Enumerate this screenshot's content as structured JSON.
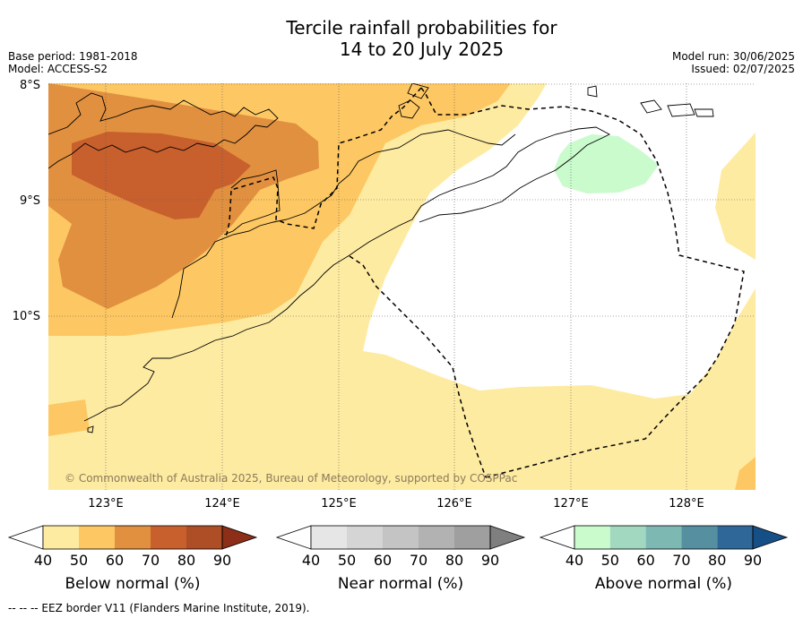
{
  "title_line1": "Tercile rainfall probabilities for",
  "title_line2": "14 to 20 July 2025",
  "header": {
    "base_period": "Base period: 1981-2018",
    "model": "Model: ACCESS-S2",
    "model_run": "Model run: 30/06/2025",
    "issued": "Issued: 02/07/2025"
  },
  "map": {
    "lat_labels": [
      "8°S",
      "9°S",
      "10°S"
    ],
    "lon_labels": [
      "123°E",
      "124°E",
      "125°E",
      "126°E",
      "127°E",
      "128°E"
    ],
    "copyright": "© Commonwealth of Australia 2025, Bureau of Meteorology, supported by COSPPac",
    "colors": {
      "below_50": "#feeba2",
      "below_60": "#fdc863",
      "below_70": "#e1903f",
      "below_80": "#c8602e",
      "above_50": "#c9fbcd",
      "land_outline": "#000000",
      "eez": "#000000"
    }
  },
  "colorbars": [
    {
      "label": "Below normal (%)",
      "ticks": [
        "40",
        "50",
        "60",
        "70",
        "80",
        "90"
      ],
      "colors": [
        "#ffffff",
        "#feeba2",
        "#fdc863",
        "#e1903f",
        "#c8602e",
        "#ad4e27",
        "#8c2e18"
      ]
    },
    {
      "label": "Near normal (%)",
      "ticks": [
        "40",
        "50",
        "60",
        "70",
        "80",
        "90"
      ],
      "colors": [
        "#ffffff",
        "#e6e6e6",
        "#d5d5d5",
        "#c4c4c4",
        "#b2b2b2",
        "#9f9f9f",
        "#7f7f7f"
      ]
    },
    {
      "label": "Above normal (%)",
      "ticks": [
        "40",
        "50",
        "60",
        "70",
        "80",
        "90"
      ],
      "colors": [
        "#ffffff",
        "#c9fbcd",
        "#a1d8bf",
        "#7eb8b3",
        "#568fa0",
        "#2f6898",
        "#164f86"
      ]
    }
  ],
  "footnote": "--  --  -- EEZ border V11 (Flanders Marine Institute, 2019)."
}
